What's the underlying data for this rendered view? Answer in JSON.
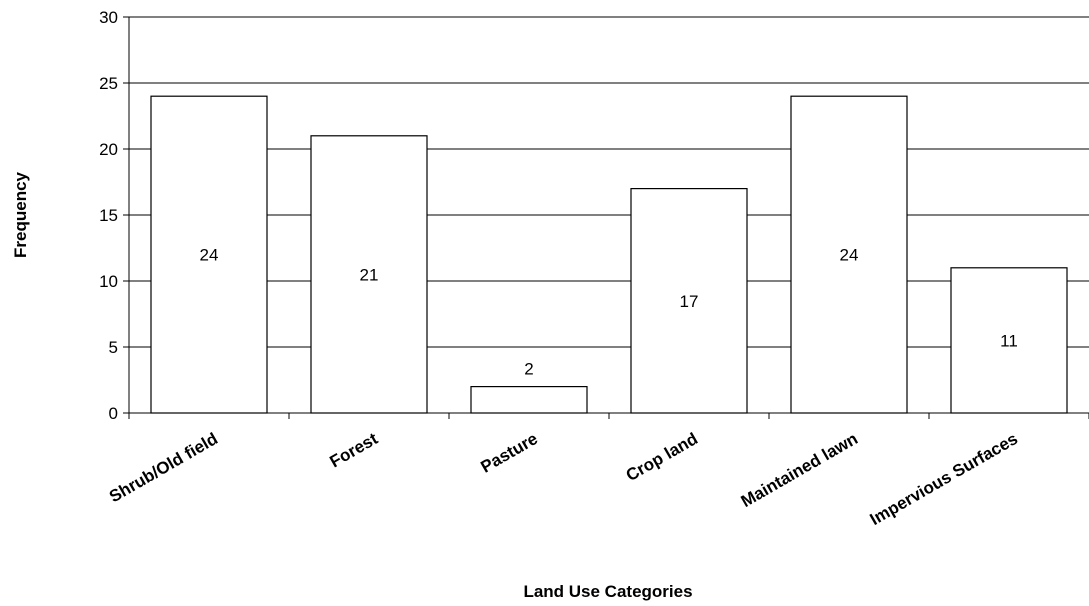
{
  "chart_data": {
    "type": "bar",
    "title": "",
    "xlabel": "Land Use Categories",
    "ylabel": "Frequency",
    "categories": [
      "Shrub/Old field",
      "Forest",
      "Pasture",
      "Crop land",
      "Maintained lawn",
      "Impervious Surfaces"
    ],
    "values": [
      24,
      21,
      2,
      17,
      24,
      11
    ],
    "data_labels": [
      "24",
      "21",
      "2",
      "17",
      "24",
      "11"
    ],
    "ylim": [
      0,
      30
    ],
    "yticks": [
      0,
      5,
      10,
      15,
      20,
      25,
      30
    ],
    "grid": true,
    "legend": "none",
    "bar_fill": "#ffffff",
    "bar_stroke": "#000000"
  }
}
